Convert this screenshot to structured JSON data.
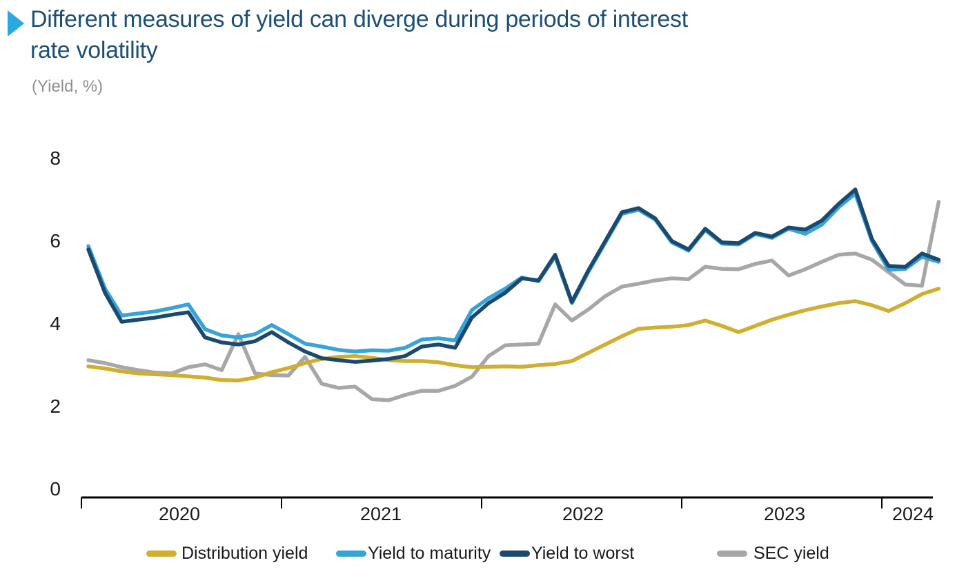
{
  "header": {
    "title_line1": "Different measures of yield can diverge during periods of interest",
    "title_line2": "rate volatility",
    "subtitle": "(Yield, %)"
  },
  "chart_data": {
    "type": "line",
    "title": "Different measures of yield can diverge during periods of interest rate volatility",
    "subtitle": "(Yield, %)",
    "x_unit": "month",
    "x_range": [
      "2020-01",
      "2024-04"
    ],
    "x_tick_years": [
      "2020",
      "2021",
      "2022",
      "2023",
      "2024"
    ],
    "ylabel": "Yield, %",
    "ylim": [
      0,
      8
    ],
    "y_ticks": [
      8,
      6,
      4,
      2,
      0
    ],
    "grid": false,
    "legend_position": "bottom",
    "series": [
      {
        "name": "Distribution yield",
        "color": "#d0ae2f",
        "values": [
          2.97,
          2.92,
          2.85,
          2.8,
          2.78,
          2.76,
          2.73,
          2.7,
          2.64,
          2.63,
          2.7,
          2.83,
          2.93,
          3.05,
          3.15,
          3.2,
          3.22,
          3.18,
          3.12,
          3.1,
          3.1,
          3.07,
          3.0,
          2.95,
          2.96,
          2.97,
          2.96,
          3.0,
          3.03,
          3.1,
          3.3,
          3.5,
          3.7,
          3.88,
          3.91,
          3.93,
          3.97,
          4.08,
          3.95,
          3.8,
          3.95,
          4.1,
          4.22,
          4.33,
          4.42,
          4.5,
          4.55,
          4.45,
          4.31,
          4.5,
          4.72,
          4.85
        ]
      },
      {
        "name": "Yield to maturity",
        "color": "#36a3d9",
        "values": [
          5.88,
          4.85,
          4.2,
          4.25,
          4.3,
          4.38,
          4.47,
          3.87,
          3.72,
          3.67,
          3.75,
          3.97,
          3.75,
          3.52,
          3.45,
          3.37,
          3.33,
          3.36,
          3.35,
          3.42,
          3.62,
          3.65,
          3.6,
          4.33,
          4.62,
          4.85,
          5.12,
          5.03,
          5.63,
          4.5,
          5.26,
          5.96,
          6.66,
          6.76,
          6.52,
          5.97,
          5.77,
          6.27,
          5.94,
          5.92,
          6.17,
          6.08,
          6.3,
          6.18,
          6.4,
          6.82,
          7.15,
          6.0,
          5.31,
          5.33,
          5.62,
          5.5
        ]
      },
      {
        "name": "Yield to worst",
        "color": "#1c4a6e",
        "values": [
          5.8,
          4.75,
          4.05,
          4.1,
          4.15,
          4.22,
          4.28,
          3.67,
          3.55,
          3.5,
          3.58,
          3.8,
          3.55,
          3.33,
          3.17,
          3.12,
          3.08,
          3.11,
          3.15,
          3.22,
          3.45,
          3.5,
          3.42,
          4.15,
          4.5,
          4.75,
          5.1,
          5.05,
          5.67,
          4.53,
          5.3,
          6.0,
          6.7,
          6.8,
          6.55,
          6.0,
          5.8,
          6.3,
          5.97,
          5.95,
          6.2,
          6.11,
          6.33,
          6.28,
          6.5,
          6.9,
          7.25,
          6.05,
          5.4,
          5.38,
          5.7,
          5.55
        ]
      },
      {
        "name": "SEC yield",
        "color": "#a7a7a7",
        "values": [
          3.12,
          3.05,
          2.95,
          2.88,
          2.82,
          2.8,
          2.95,
          3.02,
          2.88,
          3.75,
          2.8,
          2.76,
          2.75,
          3.2,
          2.55,
          2.45,
          2.48,
          2.18,
          2.15,
          2.28,
          2.38,
          2.38,
          2.5,
          2.72,
          3.22,
          3.48,
          3.5,
          3.52,
          4.47,
          4.08,
          4.35,
          4.67,
          4.9,
          4.97,
          5.05,
          5.1,
          5.08,
          5.38,
          5.33,
          5.32,
          5.45,
          5.53,
          5.17,
          5.32,
          5.5,
          5.67,
          5.7,
          5.55,
          5.25,
          4.95,
          4.92,
          6.95
        ]
      }
    ]
  }
}
